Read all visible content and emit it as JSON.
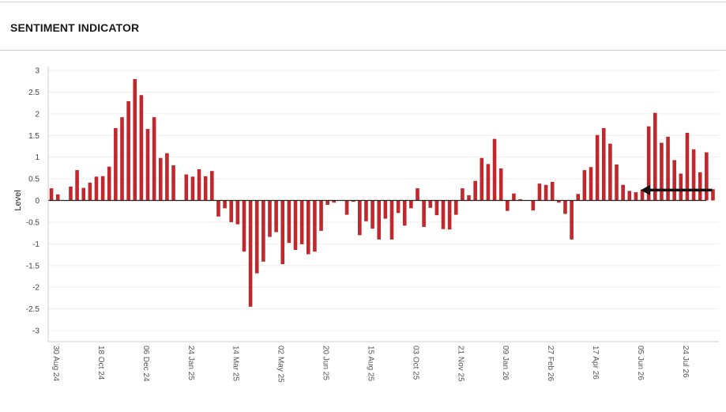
{
  "header": {
    "title": "SENTIMENT INDICATOR"
  },
  "colors": {
    "bar": "#c0282d",
    "grid": "#eeeeee",
    "zero": "#222222",
    "arrow": "#111111"
  },
  "chart_data": {
    "type": "bar",
    "ylabel": "Level",
    "ylim": [
      -3.1,
      3.1
    ],
    "yticks": [
      3,
      2.5,
      2,
      1.5,
      1,
      0.5,
      0,
      -0.5,
      -1,
      -1.5,
      -2,
      -2.5,
      -3
    ],
    "ytick_labels": [
      "3",
      "2.5",
      "2",
      "1.5",
      "1",
      "0.5",
      "0",
      "-0.5",
      "-1",
      "-1.5",
      "-2",
      "-2.5",
      "-3"
    ],
    "grid": true,
    "x_tick_labels": [
      {
        "label": "30 Aug 24",
        "index": 0
      },
      {
        "label": "18 Oct 24",
        "index": 7
      },
      {
        "label": "06 Dec 24",
        "index": 14
      },
      {
        "label": "24 Jan 25",
        "index": 21
      },
      {
        "label": "14 Mar 25",
        "index": 28
      },
      {
        "label": "02 May 25",
        "index": 35
      },
      {
        "label": "20 Jun 25",
        "index": 42
      },
      {
        "label": "15 Aug 25",
        "index": 49
      },
      {
        "label": "03 Oct 25",
        "index": 56
      },
      {
        "label": "21 Nov 25",
        "index": 63
      },
      {
        "label": "09 Jan 26",
        "index": 70
      },
      {
        "label": "27 Feb 26",
        "index": 77
      },
      {
        "label": "17 Apr 26",
        "index": 84
      },
      {
        "label": "05 Jun 26",
        "index": 91
      },
      {
        "label": "24 Jul 26",
        "index": 98
      }
    ],
    "values": [
      0.28,
      0.14,
      null,
      0.32,
      0.7,
      0.29,
      0.41,
      0.55,
      0.56,
      0.78,
      1.67,
      1.92,
      2.29,
      2.8,
      2.43,
      1.65,
      1.92,
      0.98,
      1.09,
      0.81,
      null,
      0.6,
      0.55,
      0.72,
      0.56,
      0.68,
      -0.37,
      -0.18,
      -0.5,
      -0.55,
      -1.18,
      -2.45,
      -1.68,
      -1.41,
      -0.84,
      -0.73,
      -1.47,
      -0.98,
      -1.14,
      -1.01,
      -1.24,
      -1.18,
      -0.7,
      -0.1,
      -0.05,
      null,
      -0.33,
      -0.03,
      -0.8,
      -0.48,
      -0.65,
      -0.9,
      -0.42,
      -0.9,
      -0.29,
      -0.58,
      -0.18,
      0.28,
      -0.61,
      -0.17,
      -0.34,
      -0.66,
      -0.67,
      -0.33,
      0.28,
      0.12,
      0.45,
      0.98,
      0.84,
      1.42,
      0.74,
      -0.24,
      0.16,
      0.03,
      0.01,
      -0.23,
      0.39,
      0.36,
      0.43,
      -0.05,
      -0.31,
      -0.9,
      0.15,
      0.7,
      0.77,
      1.51,
      1.67,
      1.31,
      0.83,
      0.36,
      0.22,
      0.19,
      0.25,
      1.71,
      2.02,
      1.33,
      1.47,
      0.93,
      0.62,
      1.56,
      1.18,
      0.65,
      1.11,
      0.26
    ],
    "annotations": [
      {
        "type": "arrow",
        "direction": "left",
        "from_index": 103,
        "to_index": 92,
        "y": 0.24
      }
    ]
  }
}
